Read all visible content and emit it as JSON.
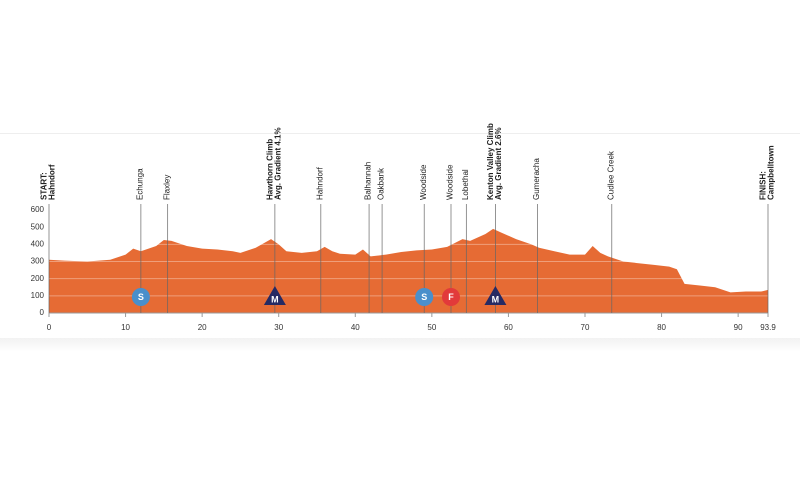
{
  "chart_data": {
    "type": "area",
    "x": [
      0,
      2,
      5,
      8,
      10,
      11,
      12,
      14,
      15,
      16,
      18,
      20,
      22,
      24,
      25,
      27,
      29,
      30,
      31,
      33,
      35,
      36,
      37,
      38,
      40,
      41,
      42,
      44,
      46,
      48,
      50,
      52,
      54,
      55,
      57,
      58,
      59,
      61,
      63,
      64,
      66,
      68,
      70,
      71,
      72,
      73,
      75,
      77,
      79,
      81,
      82,
      83,
      85,
      87,
      89,
      91,
      93,
      93.9
    ],
    "values": [
      310,
      305,
      300,
      310,
      340,
      375,
      360,
      390,
      425,
      420,
      390,
      375,
      370,
      360,
      350,
      380,
      430,
      400,
      360,
      350,
      360,
      385,
      360,
      345,
      340,
      370,
      330,
      340,
      355,
      365,
      370,
      385,
      430,
      420,
      460,
      490,
      470,
      430,
      400,
      380,
      360,
      340,
      340,
      390,
      350,
      330,
      300,
      290,
      280,
      270,
      255,
      170,
      160,
      150,
      120,
      125,
      125,
      135
    ],
    "color": "#e66b34",
    "xlim": [
      0,
      93.9
    ],
    "xticks": [
      0,
      10,
      20,
      30,
      40,
      50,
      60,
      70,
      80,
      90,
      93.9
    ],
    "ylim": [
      0,
      600
    ],
    "yticks": [
      0,
      100,
      200,
      300,
      400,
      500,
      600
    ],
    "grid": true,
    "waypoints": [
      {
        "x": 0,
        "lines": [
          "START:",
          "Hahndorf"
        ],
        "bold": true
      },
      {
        "x": 12,
        "lines": [
          "Echunga"
        ]
      },
      {
        "x": 15.5,
        "lines": [
          "Flaxley"
        ]
      },
      {
        "x": 29.5,
        "lines": [
          "Hawthorn Climb",
          "Avg. Gradient 4.1%"
        ],
        "bold": true
      },
      {
        "x": 35.5,
        "lines": [
          "Hahndorf"
        ]
      },
      {
        "x": 41.8,
        "lines": [
          "Balhannah"
        ]
      },
      {
        "x": 43.5,
        "lines": [
          "Oakbank"
        ]
      },
      {
        "x": 49,
        "lines": [
          "Woodside"
        ]
      },
      {
        "x": 52.5,
        "lines": [
          "Woodside"
        ]
      },
      {
        "x": 54.5,
        "lines": [
          "Lobethal"
        ]
      },
      {
        "x": 58.3,
        "lines": [
          "Kenton Valley Climb",
          "Avg. Gradient 2.6%"
        ],
        "bold": true
      },
      {
        "x": 63.8,
        "lines": [
          "Gumeracha"
        ]
      },
      {
        "x": 73.5,
        "lines": [
          "Cudlee Creek"
        ]
      },
      {
        "x": 93.9,
        "lines": [
          "FINISH:",
          "Campbelltown"
        ],
        "bold": true
      }
    ],
    "markers": [
      {
        "x": 12,
        "symbol": "S",
        "shape": "circle",
        "color": "#4a8fcb"
      },
      {
        "x": 29.5,
        "symbol": "M",
        "shape": "triangle",
        "color": "#262a63"
      },
      {
        "x": 49,
        "symbol": "S",
        "shape": "circle",
        "color": "#4a8fcb"
      },
      {
        "x": 52.5,
        "symbol": "F",
        "shape": "circle",
        "color": "#e23a3a"
      },
      {
        "x": 58.3,
        "symbol": "M",
        "shape": "triangle",
        "color": "#262a63"
      }
    ]
  }
}
